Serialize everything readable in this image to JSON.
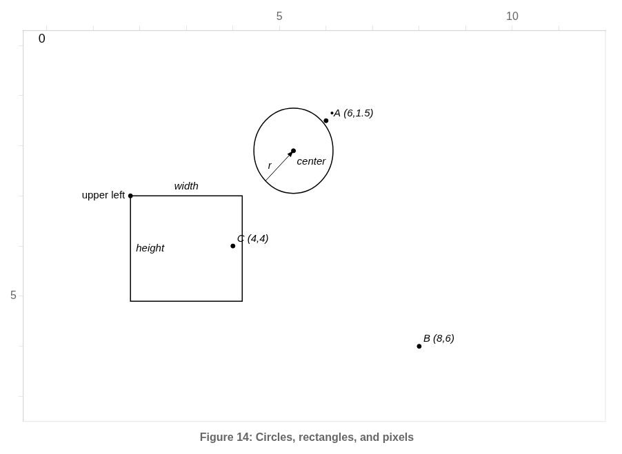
{
  "chart_data": {
    "type": "scatter",
    "title": "Figure 14: Circles, rectangles, and pixels",
    "xlim": [
      -0.5,
      12
    ],
    "ylim": [
      7.5,
      -0.3
    ],
    "xticks": [
      {
        "value": 0,
        "label": null
      },
      {
        "value": 1,
        "label": null
      },
      {
        "value": 2,
        "label": null
      },
      {
        "value": 3,
        "label": null
      },
      {
        "value": 4,
        "label": null
      },
      5,
      {
        "value": 6,
        "label": null
      },
      {
        "value": 7,
        "label": null
      },
      {
        "value": 8,
        "label": null
      },
      {
        "value": 9,
        "label": null
      },
      10,
      {
        "value": 11,
        "label": null
      }
    ],
    "yticks": [
      {
        "value": 0,
        "label": null
      },
      {
        "value": 1,
        "label": null
      },
      {
        "value": 2,
        "label": null
      },
      {
        "value": 3,
        "label": null
      },
      {
        "value": 4,
        "label": null
      },
      5,
      {
        "value": 6,
        "label": null
      },
      {
        "value": 7,
        "label": null
      }
    ],
    "grid": false,
    "color": "#000000",
    "points": [
      {
        "x": 6,
        "y": 1.5,
        "label": "•A (6,1.5)"
      },
      {
        "x": 8,
        "y": 6,
        "label": "B (8,6)"
      },
      {
        "x": 4,
        "y": 4,
        "label": "C (4,4)"
      }
    ],
    "circle": {
      "center": [
        5.3,
        2.1
      ],
      "radius_x": 0.85,
      "radius_y": 0.85,
      "center_label": "center",
      "radius_label": "r",
      "arrow_from": [
        4.698959235991435,
        2.7010407640085656
      ],
      "arrow_to": [
        5.3,
        2.1
      ]
    },
    "rectangle": {
      "x": 1.8,
      "y": 3.0,
      "width": 2.4,
      "height": 2.1,
      "width_label": "width",
      "height_label": "height",
      "corner_label": "upper left"
    },
    "annotations": [
      {
        "text": "0",
        "x": 0,
        "y": 0
      }
    ]
  }
}
